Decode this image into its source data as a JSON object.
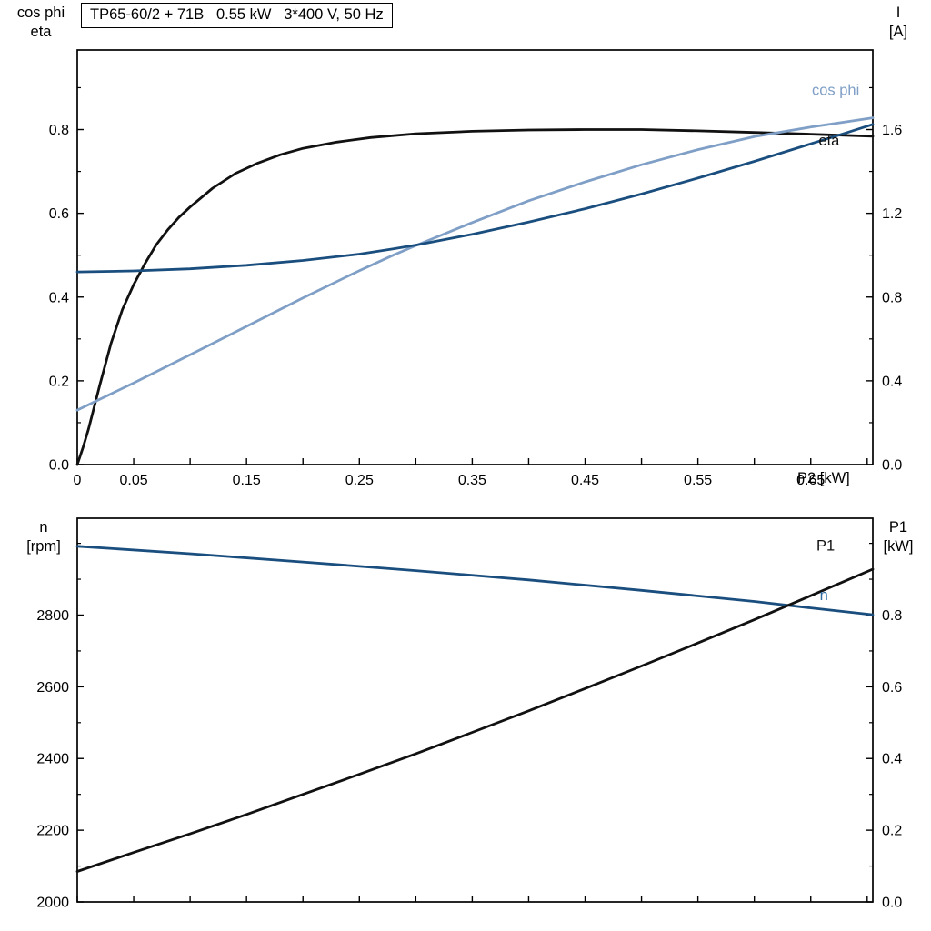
{
  "title": "TP65-60/2 + 71B   0.55 kW   3*400 V, 50 Hz",
  "colors": {
    "black": "#111111",
    "dark_blue": "#1a4e7e",
    "light_blue": "#7f9fc6",
    "n_label_blue": "#2e6da4"
  },
  "chart_data": [
    {
      "type": "line",
      "title": "TP65-60/2 + 71B   0.55 kW   3*400 V, 50 Hz",
      "xlabel": "P2 [kW]",
      "xlim": [
        0,
        0.705
      ],
      "x_tick_values": [
        0,
        0.05,
        0.1,
        0.15,
        0.2,
        0.25,
        0.3,
        0.35,
        0.4,
        0.45,
        0.5,
        0.55,
        0.6,
        0.65,
        0.7
      ],
      "x_tick_labels": [
        "0",
        "0.05",
        "",
        "0.15",
        "",
        "0.25",
        "",
        "0.35",
        "",
        "0.45",
        "",
        "0.55",
        "",
        "0.65",
        ""
      ],
      "left_axis": {
        "label_lines": [
          "cos phi",
          "eta"
        ],
        "lim": [
          0,
          0.99
        ],
        "tick_values": [
          0,
          0.2,
          0.4,
          0.6,
          0.8
        ],
        "tick_labels": [
          "0.0",
          "0.2",
          "0.4",
          "0.6",
          "0.8"
        ],
        "minor_ticks": [
          0.1,
          0.3,
          0.5,
          0.7,
          0.9
        ]
      },
      "right_axis": {
        "label_lines": [
          "I",
          "[A]"
        ],
        "lim": [
          0,
          1.98
        ],
        "tick_values": [
          0,
          0.4,
          0.8,
          1.2,
          1.6
        ],
        "tick_labels": [
          "0.0",
          "0.4",
          "0.8",
          "1.2",
          "1.6"
        ],
        "minor_ticks": [
          0.2,
          0.6,
          1.0,
          1.4,
          1.8
        ]
      },
      "series": [
        {
          "name": "eta",
          "axis": "left",
          "color": "#111111",
          "points": [
            [
              0,
              0
            ],
            [
              0.005,
              0.04
            ],
            [
              0.01,
              0.085
            ],
            [
              0.02,
              0.19
            ],
            [
              0.03,
              0.29
            ],
            [
              0.04,
              0.37
            ],
            [
              0.05,
              0.43
            ],
            [
              0.06,
              0.48
            ],
            [
              0.07,
              0.525
            ],
            [
              0.08,
              0.56
            ],
            [
              0.09,
              0.59
            ],
            [
              0.1,
              0.615
            ],
            [
              0.12,
              0.66
            ],
            [
              0.14,
              0.695
            ],
            [
              0.16,
              0.72
            ],
            [
              0.18,
              0.74
            ],
            [
              0.2,
              0.755
            ],
            [
              0.23,
              0.77
            ],
            [
              0.26,
              0.781
            ],
            [
              0.3,
              0.79
            ],
            [
              0.35,
              0.796
            ],
            [
              0.4,
              0.799
            ],
            [
              0.45,
              0.8
            ],
            [
              0.5,
              0.8
            ],
            [
              0.55,
              0.797
            ],
            [
              0.6,
              0.793
            ],
            [
              0.65,
              0.789
            ],
            [
              0.705,
              0.784
            ]
          ]
        },
        {
          "name": "cos phi",
          "axis": "left",
          "color": "#7f9fc6",
          "points": [
            [
              0,
              0.13
            ],
            [
              0.05,
              0.195
            ],
            [
              0.1,
              0.262
            ],
            [
              0.15,
              0.33
            ],
            [
              0.2,
              0.398
            ],
            [
              0.25,
              0.463
            ],
            [
              0.28,
              0.5
            ],
            [
              0.3,
              0.523
            ],
            [
              0.35,
              0.578
            ],
            [
              0.4,
              0.63
            ],
            [
              0.45,
              0.675
            ],
            [
              0.5,
              0.716
            ],
            [
              0.55,
              0.752
            ],
            [
              0.6,
              0.783
            ],
            [
              0.65,
              0.806
            ],
            [
              0.68,
              0.818
            ],
            [
              0.705,
              0.828
            ]
          ]
        },
        {
          "name": "I",
          "axis": "right",
          "color": "#1a4e7e",
          "points": [
            [
              0,
              0.92
            ],
            [
              0.05,
              0.925
            ],
            [
              0.1,
              0.935
            ],
            [
              0.15,
              0.952
            ],
            [
              0.2,
              0.975
            ],
            [
              0.25,
              1.005
            ],
            [
              0.28,
              1.03
            ],
            [
              0.3,
              1.048
            ],
            [
              0.35,
              1.1
            ],
            [
              0.4,
              1.158
            ],
            [
              0.45,
              1.222
            ],
            [
              0.5,
              1.292
            ],
            [
              0.55,
              1.368
            ],
            [
              0.6,
              1.448
            ],
            [
              0.65,
              1.532
            ],
            [
              0.68,
              1.582
            ],
            [
              0.705,
              1.625
            ]
          ]
        }
      ],
      "curve_labels": [
        {
          "text": "cos phi",
          "color": "#7f9fc6",
          "axis": "left",
          "x": 0.651,
          "y": 0.882
        },
        {
          "text": "eta",
          "color": "#111111",
          "axis": "left",
          "x": 0.657,
          "y": 0.762
        }
      ]
    },
    {
      "type": "line",
      "xlabel": "",
      "xlim": [
        0,
        0.705
      ],
      "x_tick_values": [
        0,
        0.05,
        0.1,
        0.15,
        0.2,
        0.25,
        0.3,
        0.35,
        0.4,
        0.45,
        0.5,
        0.55,
        0.6,
        0.65,
        0.7
      ],
      "x_tick_labels": [],
      "left_axis": {
        "label_lines": [
          "n",
          "[rpm]"
        ],
        "lim": [
          2000,
          3070
        ],
        "tick_values": [
          2000,
          2200,
          2400,
          2600,
          2800
        ],
        "tick_labels": [
          "2000",
          "2200",
          "2400",
          "2600",
          "2800"
        ],
        "minor_ticks": [
          2100,
          2300,
          2500,
          2700,
          2900,
          3000
        ]
      },
      "right_axis": {
        "label_lines": [
          "P1",
          "[kW]"
        ],
        "lim": [
          0,
          1.07
        ],
        "tick_values": [
          0,
          0.2,
          0.4,
          0.6,
          0.8
        ],
        "tick_labels": [
          "0.0",
          "0.2",
          "0.4",
          "0.6",
          "0.8"
        ],
        "minor_ticks": [
          0.1,
          0.3,
          0.5,
          0.7,
          0.9,
          1.0
        ]
      },
      "series": [
        {
          "name": "n",
          "axis": "left",
          "color": "#1a4e7e",
          "points": [
            [
              0,
              2992
            ],
            [
              0.1,
              2971
            ],
            [
              0.2,
              2948
            ],
            [
              0.3,
              2924
            ],
            [
              0.4,
              2898
            ],
            [
              0.5,
              2869
            ],
            [
              0.6,
              2838
            ],
            [
              0.65,
              2820
            ],
            [
              0.705,
              2801
            ]
          ]
        },
        {
          "name": "P1",
          "axis": "right",
          "color": "#111111",
          "points": [
            [
              0,
              0.085
            ],
            [
              0.05,
              0.138
            ],
            [
              0.1,
              0.19
            ],
            [
              0.15,
              0.244
            ],
            [
              0.2,
              0.3
            ],
            [
              0.25,
              0.356
            ],
            [
              0.3,
              0.413
            ],
            [
              0.35,
              0.473
            ],
            [
              0.4,
              0.533
            ],
            [
              0.45,
              0.595
            ],
            [
              0.5,
              0.658
            ],
            [
              0.55,
              0.722
            ],
            [
              0.6,
              0.787
            ],
            [
              0.65,
              0.854
            ],
            [
              0.705,
              0.928
            ]
          ]
        }
      ],
      "curve_labels": [
        {
          "text": "P1",
          "color": "#111111",
          "axis": "right",
          "x": 0.655,
          "y": 0.98
        },
        {
          "text": "n",
          "color": "#2e6da4",
          "axis": "left",
          "x": 0.658,
          "y": 2842
        }
      ]
    }
  ]
}
